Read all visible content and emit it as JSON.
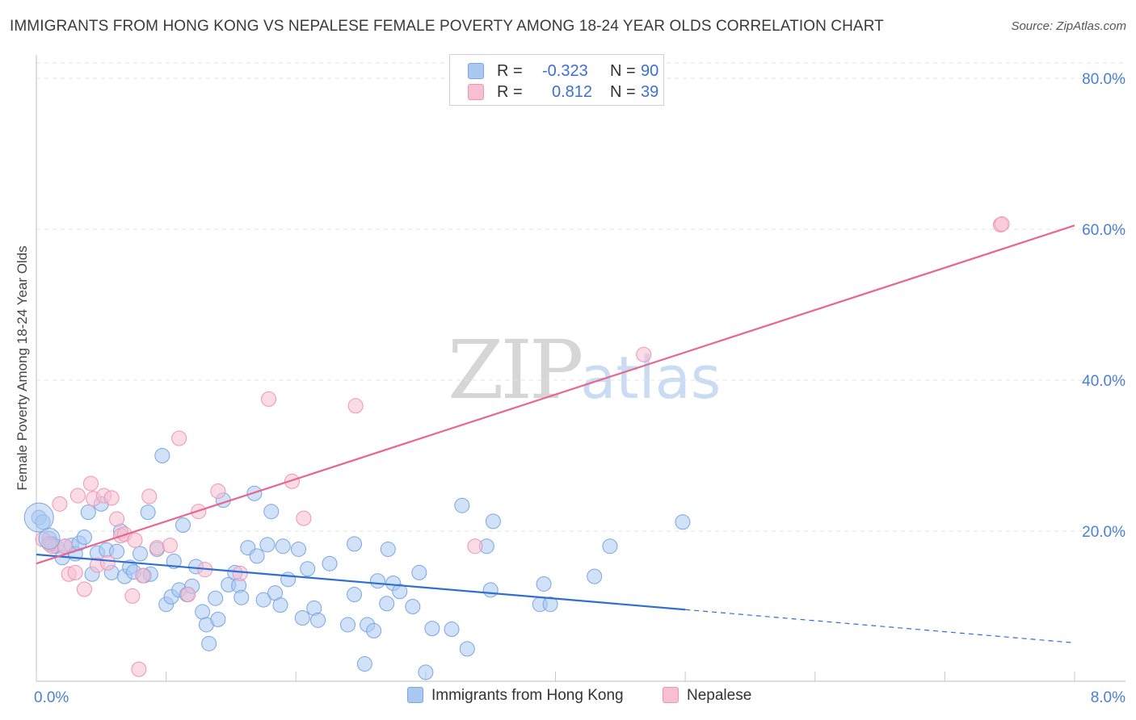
{
  "header": {
    "title": "IMMIGRANTS FROM HONG KONG VS NEPALESE FEMALE POVERTY AMONG 18-24 YEAR OLDS CORRELATION CHART",
    "source": "Source: ZipAtlas.com"
  },
  "watermark": {
    "zip": "ZIP",
    "atlas": "atlas"
  },
  "legend": {
    "series": [
      {
        "r_label": "R =",
        "r_value": "-0.323",
        "n_label": "N =",
        "n_value": "90",
        "color": "#a9c8f2",
        "border": "#7aa6e3"
      },
      {
        "r_label": "R =",
        "r_value": "0.812",
        "n_label": "N =",
        "n_value": "39",
        "color": "#f7bfd1",
        "border": "#ef94b2"
      }
    ]
  },
  "bottom_legend": [
    {
      "label": "Immigrants from Hong Kong",
      "color": "#a9c8f2",
      "border": "#7aa6e3"
    },
    {
      "label": "Nepalese",
      "color": "#f7bfd1",
      "border": "#ef94b2"
    }
  ],
  "chart_data": {
    "type": "scatter",
    "title": "IMMIGRANTS FROM HONG KONG VS NEPALESE FEMALE POVERTY AMONG 18-24 YEAR OLDS CORRELATION CHART",
    "xlabel": "",
    "ylabel": "Female Poverty Among 18-24 Year Olds",
    "xlim": [
      0,
      8
    ],
    "ylim": [
      0,
      80
    ],
    "x_tick_labels": [
      {
        "value": 0,
        "label": "0.0%"
      },
      {
        "value": 8,
        "label": "8.0%"
      }
    ],
    "y_tick_labels": [
      {
        "value": 20,
        "label": "20.0%"
      },
      {
        "value": 40,
        "label": "40.0%"
      },
      {
        "value": 60,
        "label": "60.0%"
      },
      {
        "value": 80,
        "label": "80.0%"
      }
    ],
    "grid": true,
    "legend_position": "top-center",
    "series": [
      {
        "name": "Immigrants from Hong Kong",
        "color": "#a9c8f2",
        "stroke": "#7aa6e3",
        "trend_color": "#2f6fd0",
        "trend": {
          "x0": 0,
          "y0": 16.9,
          "x1": 5.0,
          "y1": 9.6,
          "dash_to_x": 8.0,
          "dash_to_y": 5.2
        },
        "points": [
          [
            0.02,
            21.8
          ],
          [
            0.05,
            21.2
          ],
          [
            0.1,
            19.0
          ],
          [
            0.12,
            18.3
          ],
          [
            0.15,
            18.0
          ],
          [
            0.2,
            16.5
          ],
          [
            0.22,
            18.0
          ],
          [
            0.27,
            18.1
          ],
          [
            0.3,
            17.0
          ],
          [
            0.33,
            18.4
          ],
          [
            0.37,
            19.2
          ],
          [
            0.4,
            22.5
          ],
          [
            0.43,
            14.3
          ],
          [
            0.47,
            17.1
          ],
          [
            0.5,
            23.6
          ],
          [
            0.54,
            17.5
          ],
          [
            0.58,
            14.5
          ],
          [
            0.62,
            17.3
          ],
          [
            0.65,
            20.0
          ],
          [
            0.68,
            14.0
          ],
          [
            0.72,
            15.2
          ],
          [
            0.75,
            14.6
          ],
          [
            0.8,
            17.0
          ],
          [
            0.83,
            14.1
          ],
          [
            0.86,
            22.5
          ],
          [
            0.88,
            14.3
          ],
          [
            0.93,
            17.6
          ],
          [
            0.97,
            30.0
          ],
          [
            1.0,
            10.3
          ],
          [
            1.04,
            11.3
          ],
          [
            1.06,
            16.0
          ],
          [
            1.1,
            12.2
          ],
          [
            1.13,
            20.8
          ],
          [
            1.16,
            11.6
          ],
          [
            1.2,
            12.7
          ],
          [
            1.23,
            15.3
          ],
          [
            1.28,
            9.3
          ],
          [
            1.31,
            7.6
          ],
          [
            1.33,
            5.1
          ],
          [
            1.38,
            11.1
          ],
          [
            1.4,
            8.3
          ],
          [
            1.44,
            24.1
          ],
          [
            1.48,
            12.9
          ],
          [
            1.53,
            14.5
          ],
          [
            1.56,
            12.8
          ],
          [
            1.58,
            11.2
          ],
          [
            1.63,
            17.8
          ],
          [
            1.68,
            25.0
          ],
          [
            1.7,
            16.7
          ],
          [
            1.75,
            10.9
          ],
          [
            1.78,
            18.2
          ],
          [
            1.81,
            22.6
          ],
          [
            1.84,
            11.8
          ],
          [
            1.88,
            10.2
          ],
          [
            1.9,
            18.0
          ],
          [
            1.94,
            13.6
          ],
          [
            2.02,
            17.6
          ],
          [
            2.05,
            8.5
          ],
          [
            2.09,
            15.0
          ],
          [
            2.14,
            9.8
          ],
          [
            2.17,
            8.2
          ],
          [
            2.26,
            15.7
          ],
          [
            2.4,
            7.6
          ],
          [
            2.45,
            11.6
          ],
          [
            2.45,
            18.3
          ],
          [
            2.53,
            2.4
          ],
          [
            2.55,
            7.6
          ],
          [
            2.6,
            6.8
          ],
          [
            2.63,
            13.4
          ],
          [
            2.7,
            10.4
          ],
          [
            2.71,
            17.6
          ],
          [
            2.75,
            13.1
          ],
          [
            2.8,
            12.0
          ],
          [
            2.9,
            10.0
          ],
          [
            2.95,
            14.5
          ],
          [
            3.0,
            1.3
          ],
          [
            3.05,
            7.1
          ],
          [
            3.2,
            7.0
          ],
          [
            3.28,
            23.4
          ],
          [
            3.32,
            4.4
          ],
          [
            3.52,
            21.3
          ],
          [
            3.47,
            18.0
          ],
          [
            3.5,
            12.2
          ],
          [
            3.88,
            10.3
          ],
          [
            3.91,
            13.0
          ],
          [
            3.96,
            10.3
          ],
          [
            4.3,
            14.0
          ],
          [
            4.42,
            18.0
          ],
          [
            4.98,
            21.2
          ]
        ]
      },
      {
        "name": "Nepalese",
        "color": "#f7bfd1",
        "stroke": "#ef94b2",
        "trend_color": "#e8658f",
        "trend": {
          "x0": 0,
          "y0": 15.7,
          "x1": 8.0,
          "y1": 60.5
        },
        "points": [
          [
            0.05,
            18.9
          ],
          [
            0.12,
            18.0
          ],
          [
            0.18,
            23.6
          ],
          [
            0.22,
            18.0
          ],
          [
            0.25,
            14.3
          ],
          [
            0.3,
            14.5
          ],
          [
            0.32,
            24.7
          ],
          [
            0.37,
            12.3
          ],
          [
            0.42,
            26.3
          ],
          [
            0.44,
            24.3
          ],
          [
            0.47,
            15.5
          ],
          [
            0.52,
            24.7
          ],
          [
            0.55,
            15.8
          ],
          [
            0.58,
            24.4
          ],
          [
            0.62,
            21.6
          ],
          [
            0.65,
            19.4
          ],
          [
            0.68,
            19.6
          ],
          [
            0.74,
            11.4
          ],
          [
            0.76,
            18.8
          ],
          [
            0.79,
            1.7
          ],
          [
            0.82,
            14.1
          ],
          [
            0.87,
            24.6
          ],
          [
            0.93,
            17.8
          ],
          [
            1.03,
            18.1
          ],
          [
            1.1,
            32.3
          ],
          [
            1.17,
            11.6
          ],
          [
            1.25,
            22.6
          ],
          [
            1.3,
            14.9
          ],
          [
            1.4,
            25.3
          ],
          [
            1.57,
            14.4
          ],
          [
            1.79,
            37.5
          ],
          [
            1.97,
            26.6
          ],
          [
            2.06,
            21.7
          ],
          [
            2.46,
            36.6
          ],
          [
            3.38,
            18.0
          ],
          [
            4.68,
            43.4
          ],
          [
            7.43,
            60.6
          ],
          [
            7.44,
            60.7
          ],
          [
            0.1,
            18.3
          ]
        ]
      }
    ]
  }
}
